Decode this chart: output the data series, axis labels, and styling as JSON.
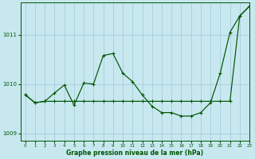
{
  "xlabel": "Graphe pression niveau de la mer (hPa)",
  "bg_color": "#c8e8f0",
  "grid_color": "#a0c8d8",
  "line_color": "#005500",
  "ylim": [
    1008.85,
    1011.65
  ],
  "xlim": [
    -0.5,
    23
  ],
  "yticks": [
    1009,
    1010,
    1011
  ],
  "xticks": [
    0,
    1,
    2,
    3,
    4,
    5,
    6,
    7,
    8,
    9,
    10,
    11,
    12,
    13,
    14,
    15,
    16,
    17,
    18,
    19,
    20,
    21,
    22,
    23
  ],
  "line1_x": [
    0,
    1,
    2,
    3,
    4,
    5,
    6,
    7,
    8,
    9,
    10,
    11,
    12,
    13,
    14,
    15,
    16,
    17,
    18,
    19,
    20,
    21,
    22,
    23
  ],
  "line1_y": [
    1009.78,
    1009.62,
    1009.65,
    1009.82,
    1009.98,
    1009.57,
    1010.02,
    1010.0,
    1010.58,
    1010.62,
    1010.22,
    1010.05,
    1009.78,
    1009.55,
    1009.42,
    1009.42,
    1009.35,
    1009.35,
    1009.42,
    1009.62,
    1010.22,
    1011.05,
    1011.38,
    1011.58
  ],
  "line2_x": [
    0,
    1,
    2,
    3,
    4,
    5,
    6,
    7,
    8,
    9,
    10,
    11,
    12,
    13,
    14,
    15,
    16,
    17,
    18,
    19,
    20,
    21,
    22,
    23
  ],
  "line2_y": [
    1009.78,
    1009.62,
    1009.65,
    1009.65,
    1009.65,
    1009.65,
    1009.65,
    1009.65,
    1009.65,
    1009.65,
    1009.65,
    1009.65,
    1009.65,
    1009.65,
    1009.65,
    1009.65,
    1009.65,
    1009.65,
    1009.65,
    1009.65,
    1009.65,
    1009.65,
    1011.38,
    1011.58
  ]
}
